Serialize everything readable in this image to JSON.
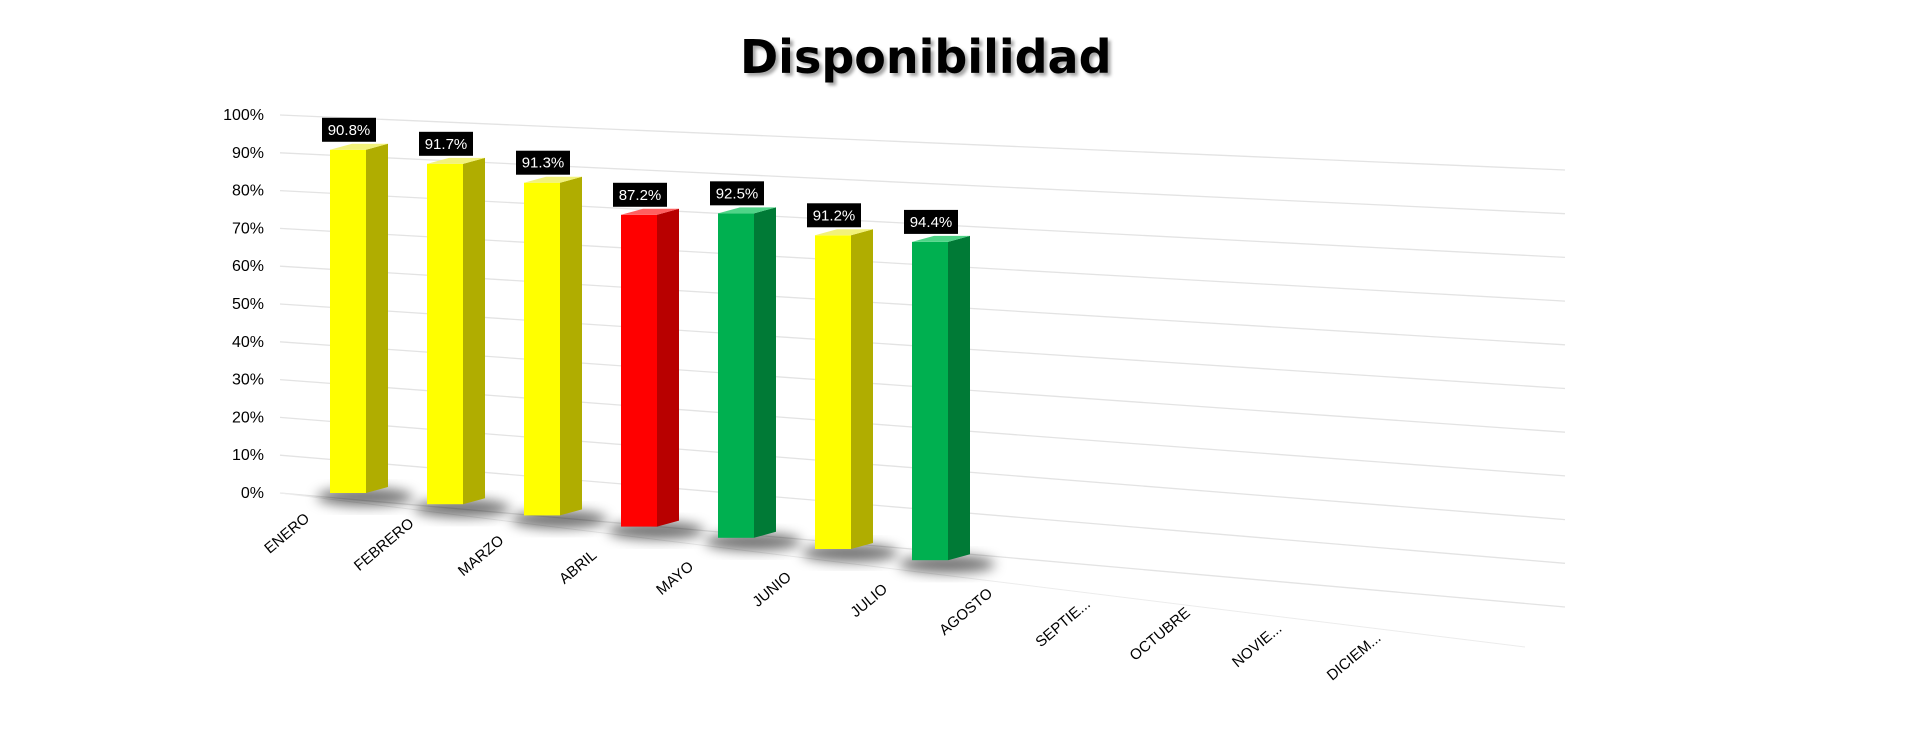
{
  "title": "Disponibilidad",
  "colors": {
    "yellow": "#ffff00",
    "red": "#ff0000",
    "green": "#00b050"
  },
  "chart_data": {
    "type": "bar",
    "title": "Disponibilidad",
    "xlabel": "",
    "ylabel": "",
    "ylim": [
      0,
      100
    ],
    "yticks": [
      "0%",
      "10%",
      "20%",
      "30%",
      "40%",
      "50%",
      "60%",
      "70%",
      "80%",
      "90%",
      "100%"
    ],
    "categories": [
      "ENERO",
      "FEBRERO",
      "MARZO",
      "ABRIL",
      "MAYO",
      "JUNIO",
      "JULIO",
      "AGOSTO",
      "SEPTIE...",
      "OCTUBRE",
      "NOVIE...",
      "DICIEM..."
    ],
    "values": [
      90.8,
      91.7,
      91.3,
      87.2,
      92.5,
      91.2,
      94.4,
      null,
      null,
      null,
      null,
      null
    ],
    "labels": [
      "90.8%",
      "91.7%",
      "91.3%",
      "87.2%",
      "92.5%",
      "91.2%",
      "94.4%"
    ],
    "bar_colors": [
      "yellow",
      "yellow",
      "yellow",
      "red",
      "green",
      "yellow",
      "green"
    ],
    "grid": true,
    "style": "3d-perspective"
  }
}
